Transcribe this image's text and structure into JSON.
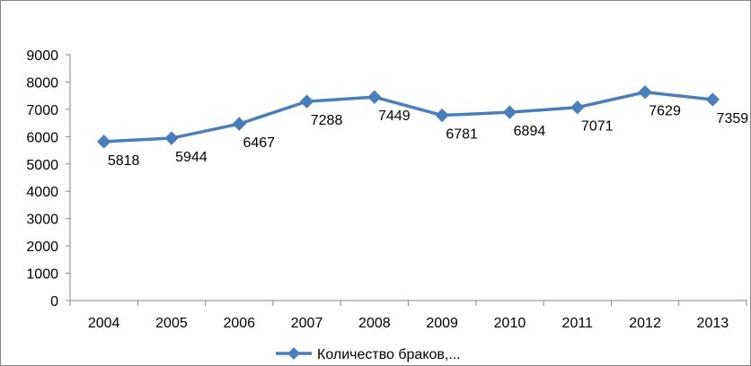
{
  "chart_data": {
    "type": "line",
    "title": "",
    "xlabel": "",
    "ylabel": "",
    "categories": [
      "2004",
      "2005",
      "2006",
      "2007",
      "2008",
      "2009",
      "2010",
      "2011",
      "2012",
      "2013"
    ],
    "series": [
      {
        "name": "Количество браков,...",
        "values": [
          5818,
          5944,
          6467,
          7288,
          7449,
          6781,
          6894,
          7071,
          7629,
          7359
        ],
        "color": "#4a7ebb",
        "marker": "diamond"
      }
    ],
    "data_labels": [
      "5818",
      "5944",
      "6467",
      "7288",
      "7449",
      "6781",
      "6894",
      "7071",
      "7629",
      "7359"
    ],
    "y_ticks": [
      "0",
      "1000",
      "2000",
      "3000",
      "4000",
      "5000",
      "6000",
      "7000",
      "8000",
      "9000"
    ],
    "ylim": [
      0,
      9000
    ],
    "grid": false,
    "legend_position": "bottom"
  }
}
